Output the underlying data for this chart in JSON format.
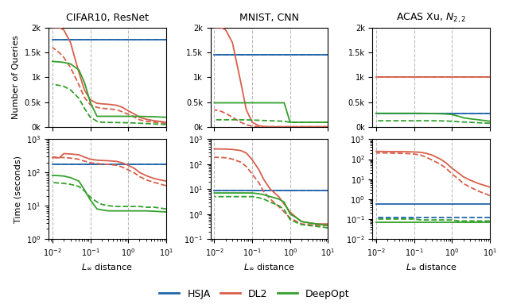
{
  "titles": [
    "CIFAR10, ResNet",
    "MNIST, CNN",
    "ACAS Xu, $N_{2,2}$"
  ],
  "xlabel": "$L_\\infty$ distance",
  "ylabel_top": "Number of Queries",
  "ylabel_bottom": "Time (seconds)",
  "colors": {
    "HSJA": "#2166ac",
    "DL2": "#d6604d",
    "DeepOpt": "#33a02c"
  },
  "x_values": [
    10,
    5,
    3,
    2,
    1.5,
    1.0,
    0.7,
    0.5,
    0.3,
    0.2,
    0.15,
    0.1,
    0.07,
    0.05,
    0.03,
    0.02,
    0.015,
    0.01
  ],
  "cifar_q_hsja_s": [
    1750,
    1750,
    1750,
    1750,
    1750,
    1750,
    1750,
    1750,
    1750,
    1750,
    1750,
    1750,
    1750,
    1750,
    1750,
    1750,
    1750,
    1750
  ],
  "cifar_q_hsja_d": [
    1750,
    1750,
    1750,
    1750,
    1750,
    1750,
    1750,
    1750,
    1750,
    1750,
    1750,
    1750,
    1750,
    1750,
    1750,
    1750,
    1750,
    1750
  ],
  "cifar_q_dl2_s": [
    100,
    130,
    160,
    200,
    260,
    330,
    400,
    440,
    460,
    470,
    480,
    550,
    750,
    1100,
    1700,
    1950,
    2000,
    2000
  ],
  "cifar_q_dl2_d": [
    80,
    100,
    120,
    150,
    200,
    260,
    310,
    350,
    370,
    380,
    400,
    450,
    600,
    850,
    1200,
    1400,
    1500,
    1600
  ],
  "cifar_q_dopt_s": [
    200,
    210,
    215,
    218,
    220,
    220,
    220,
    220,
    220,
    220,
    220,
    500,
    900,
    1150,
    1270,
    1300,
    1310,
    1320
  ],
  "cifar_q_dopt_d": [
    55,
    65,
    75,
    80,
    85,
    90,
    92,
    95,
    97,
    100,
    120,
    200,
    380,
    580,
    750,
    820,
    840,
    860
  ],
  "mnist_q_hsja_s": [
    1450,
    1450,
    1450,
    1450,
    1450,
    1450,
    1450,
    1450,
    1450,
    1450,
    1450,
    1450,
    1450,
    1450,
    1450,
    1450,
    1450,
    1450
  ],
  "mnist_q_hsja_d": [
    1450,
    1450,
    1450,
    1450,
    1450,
    1450,
    1450,
    1450,
    1450,
    1450,
    1450,
    1450,
    1450,
    1450,
    1450,
    1450,
    1450,
    1450
  ],
  "mnist_q_dl2_s": [
    10,
    10,
    10,
    10,
    10,
    10,
    10,
    10,
    10,
    15,
    30,
    100,
    350,
    900,
    1700,
    1950,
    2000,
    2000
  ],
  "mnist_q_dl2_d": [
    10,
    10,
    10,
    10,
    10,
    10,
    10,
    10,
    10,
    10,
    12,
    20,
    50,
    100,
    200,
    280,
    320,
    350
  ],
  "mnist_q_dopt_s": [
    100,
    100,
    100,
    100,
    100,
    100,
    490,
    490,
    490,
    490,
    490,
    490,
    490,
    490,
    490,
    490,
    490,
    490
  ],
  "mnist_q_dopt_d": [
    100,
    100,
    100,
    100,
    100,
    100,
    120,
    125,
    130,
    135,
    140,
    145,
    148,
    150,
    150,
    150,
    150,
    150
  ],
  "acas_q_hsja_s": [
    270,
    270,
    270,
    270,
    270,
    270,
    270,
    270,
    270,
    270,
    270,
    270,
    270,
    270,
    270,
    270,
    270,
    270
  ],
  "acas_q_hsja_d": [
    270,
    270,
    270,
    270,
    270,
    270,
    270,
    270,
    270,
    270,
    270,
    270,
    270,
    270,
    270,
    270,
    270,
    270
  ],
  "acas_q_dl2_s": [
    1000,
    1000,
    1000,
    1000,
    1000,
    1000,
    1000,
    1000,
    1000,
    1000,
    1000,
    1000,
    1000,
    1000,
    1000,
    1000,
    1000,
    1000
  ],
  "acas_q_dl2_d": [
    1000,
    1000,
    1000,
    1000,
    1000,
    1000,
    1000,
    1000,
    1000,
    1000,
    1000,
    1000,
    1000,
    1000,
    1000,
    1000,
    1000,
    1000
  ],
  "acas_q_dopt_s": [
    120,
    150,
    170,
    190,
    220,
    255,
    265,
    270,
    275,
    278,
    280,
    280,
    280,
    280,
    280,
    280,
    280,
    280
  ],
  "acas_q_dopt_d": [
    80,
    90,
    100,
    105,
    110,
    120,
    125,
    128,
    130,
    130,
    130,
    130,
    130,
    130,
    130,
    130,
    130,
    130
  ],
  "cifar_t_hsja_s": [
    175,
    175,
    175,
    175,
    175,
    175,
    175,
    175,
    175,
    175,
    175,
    175,
    175,
    175,
    175,
    175,
    175,
    175
  ],
  "cifar_t_hsja_d": [
    175,
    175,
    175,
    175,
    175,
    175,
    175,
    175,
    175,
    175,
    175,
    175,
    175,
    175,
    175,
    175,
    175,
    175
  ],
  "cifar_t_dl2_s": [
    55,
    65,
    80,
    100,
    130,
    165,
    195,
    215,
    225,
    230,
    235,
    250,
    290,
    340,
    360,
    370,
    275,
    280
  ],
  "cifar_t_dl2_d": [
    40,
    50,
    60,
    75,
    95,
    120,
    145,
    165,
    175,
    180,
    185,
    195,
    220,
    250,
    270,
    280,
    285,
    290
  ],
  "cifar_t_dopt_s": [
    6.5,
    6.8,
    7.0,
    7.0,
    7.0,
    7.0,
    7.0,
    7.0,
    7.0,
    7.5,
    8,
    15,
    30,
    55,
    70,
    78,
    80,
    82
  ],
  "cifar_t_dopt_d": [
    8,
    9,
    9,
    9.5,
    9.5,
    9.5,
    9.5,
    9.5,
    10,
    11,
    13,
    18,
    28,
    38,
    44,
    47,
    48,
    50
  ],
  "mnist_t_hsja_s": [
    9,
    9,
    9,
    9,
    9,
    9,
    9,
    9,
    9,
    9,
    9,
    9,
    9,
    9,
    9,
    9,
    9,
    9
  ],
  "mnist_t_hsja_d": [
    9,
    9,
    9,
    9,
    9,
    9,
    9,
    9,
    9,
    9,
    9,
    9,
    9,
    9,
    9,
    9,
    9,
    9
  ],
  "mnist_t_dl2_s": [
    0.4,
    0.4,
    0.45,
    0.5,
    0.7,
    1.2,
    2.5,
    5,
    10,
    25,
    60,
    150,
    280,
    350,
    390,
    400,
    405,
    410
  ],
  "mnist_t_dl2_d": [
    0.35,
    0.35,
    0.38,
    0.4,
    0.5,
    0.7,
    1.2,
    2,
    4,
    8,
    18,
    40,
    80,
    120,
    160,
    180,
    185,
    190
  ],
  "mnist_t_dopt_s": [
    0.35,
    0.4,
    0.45,
    0.5,
    0.7,
    1.0,
    3,
    4,
    5,
    6,
    6.5,
    7,
    7,
    7,
    7,
    7,
    7,
    7
  ],
  "mnist_t_dopt_d": [
    0.28,
    0.32,
    0.35,
    0.38,
    0.45,
    0.6,
    1.5,
    2.2,
    3,
    4,
    4.5,
    5,
    5,
    5,
    5,
    5,
    5,
    5
  ],
  "acas_t_hsja_s": [
    0.55,
    0.55,
    0.55,
    0.55,
    0.55,
    0.55,
    0.55,
    0.55,
    0.55,
    0.55,
    0.55,
    0.55,
    0.55,
    0.55,
    0.55,
    0.55,
    0.55,
    0.55
  ],
  "acas_t_hsja_d": [
    0.12,
    0.12,
    0.12,
    0.12,
    0.12,
    0.12,
    0.12,
    0.12,
    0.12,
    0.12,
    0.12,
    0.12,
    0.12,
    0.12,
    0.12,
    0.12,
    0.12,
    0.12
  ],
  "acas_t_dl2_s": [
    4,
    6,
    9,
    13,
    20,
    35,
    65,
    100,
    160,
    200,
    220,
    230,
    235,
    238,
    240,
    242,
    244,
    245
  ],
  "acas_t_dl2_d": [
    1.5,
    2.5,
    4,
    6,
    10,
    18,
    35,
    55,
    90,
    130,
    160,
    180,
    190,
    195,
    200,
    203,
    205,
    207
  ],
  "acas_t_dopt_s": [
    0.07,
    0.07,
    0.07,
    0.07,
    0.07,
    0.07,
    0.07,
    0.07,
    0.07,
    0.07,
    0.07,
    0.07,
    0.07,
    0.07,
    0.07,
    0.07,
    0.07,
    0.07
  ],
  "acas_t_dopt_d": [
    0.08,
    0.08,
    0.08,
    0.08,
    0.08,
    0.09,
    0.09,
    0.09,
    0.09,
    0.09,
    0.09,
    0.1,
    0.1,
    0.1,
    0.1,
    0.1,
    0.1,
    0.1
  ]
}
